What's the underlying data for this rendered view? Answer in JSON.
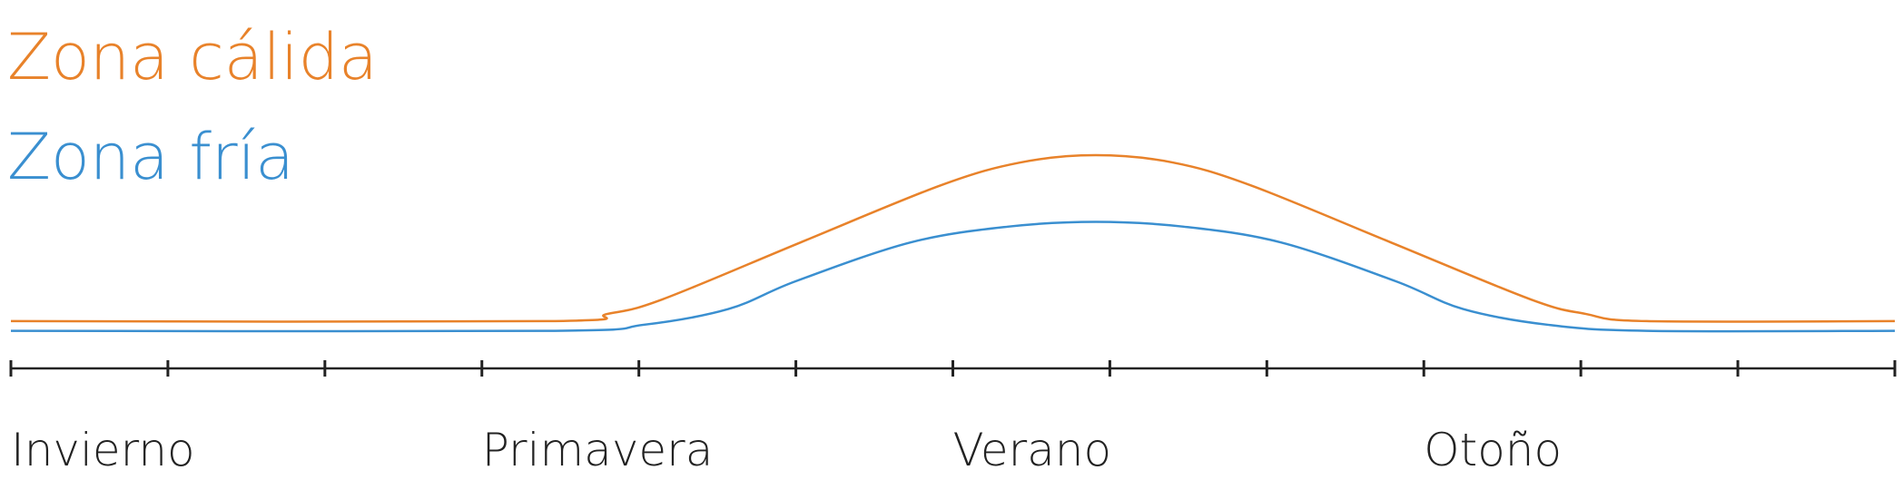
{
  "chart_data": {
    "type": "line",
    "xlim": [
      0,
      12
    ],
    "ylim": [
      0,
      200
    ],
    "xticks": [
      {
        "value": 0,
        "label": "Invierno"
      },
      {
        "value": 3,
        "label": "Primavera"
      },
      {
        "value": 6,
        "label": "Verano"
      },
      {
        "value": 9,
        "label": "Otoño"
      }
    ],
    "minor_xticks": [
      1,
      2,
      4,
      5,
      7,
      8,
      10,
      11,
      12
    ],
    "series": [
      {
        "name": "Zona cálida",
        "color": "#e8822a",
        "x": [
          0,
          3.41,
          3.8,
          4.15,
          5.03,
          5.92,
          6.43,
          6.91,
          7.4,
          7.9,
          8.79,
          9.68,
          10.03,
          10.42,
          12
        ],
        "values": [
          39,
          39,
          45,
          57,
          104,
          151,
          170,
          176,
          170,
          151,
          104,
          57,
          45,
          39,
          39
        ]
      },
      {
        "name": "Zona fría",
        "color": "#3a8fd0",
        "x": [
          0,
          3.41,
          4.03,
          4.57,
          5.0,
          5.73,
          6.35,
          6.91,
          7.47,
          8.09,
          8.82,
          9.25,
          9.79,
          10.42,
          12
        ],
        "values": [
          31,
          31,
          36,
          49,
          72,
          104,
          117,
          121,
          117,
          104,
          72,
          49,
          36,
          31,
          31
        ]
      }
    ]
  }
}
